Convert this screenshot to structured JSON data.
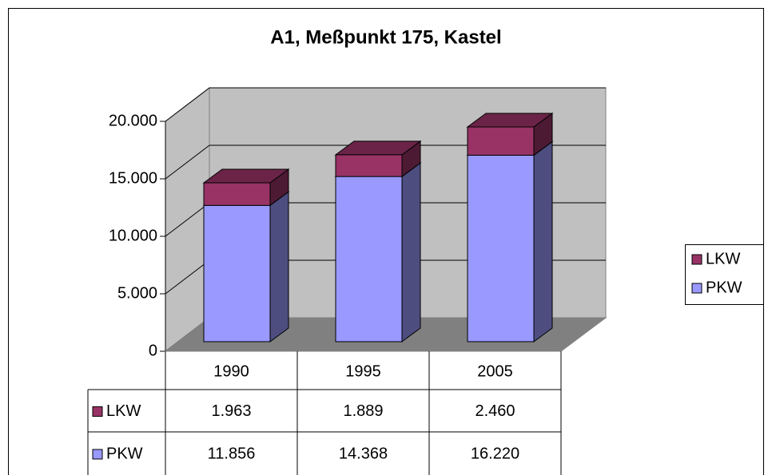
{
  "chart_data": {
    "type": "bar3d_stacked",
    "title": "A1, Meßpunkt 175, Kastel",
    "categories": [
      "1990",
      "1995",
      "2005"
    ],
    "series": [
      {
        "name": "PKW",
        "color": "#9999ff",
        "values": [
          11856,
          14368,
          16220
        ],
        "value_labels": [
          "11.856",
          "14.368",
          "16.220"
        ]
      },
      {
        "name": "LKW",
        "color": "#993366",
        "values": [
          1963,
          1889,
          2460
        ],
        "value_labels": [
          "1.963",
          "1.889",
          "2.460"
        ]
      }
    ],
    "ylim": [
      0,
      20000
    ],
    "yticks": [
      0,
      {
        "value": 5000,
        "label": "5.000"
      },
      {
        "value": 10000,
        "label": "10.000"
      },
      {
        "value": 15000,
        "label": "15.000"
      },
      {
        "value": 20000,
        "label": "20.000"
      }
    ],
    "grid": true,
    "legend": "right",
    "data_table": true
  }
}
